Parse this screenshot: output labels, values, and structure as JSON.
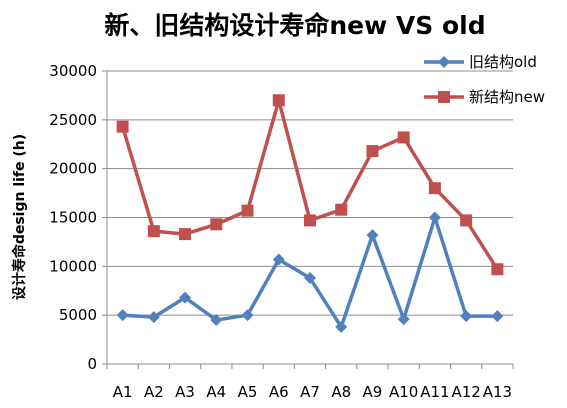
{
  "chart_data": {
    "type": "line",
    "title": "新、旧结构设计寿命new VS old",
    "ylabel": "设计寿命design life (h)",
    "xlabel": "",
    "categories": [
      "A1",
      "A2",
      "A3",
      "A4",
      "A5",
      "A6",
      "A7",
      "A8",
      "A9",
      "A10",
      "A11",
      "A12",
      "A13"
    ],
    "ylim": [
      0,
      30000
    ],
    "yticks": [
      0,
      5000,
      10000,
      15000,
      20000,
      25000,
      30000
    ],
    "grid": true,
    "legend_position": "top-right",
    "series": [
      {
        "name": "旧结构old",
        "color": "#4f81bd",
        "marker": "diamond",
        "values": [
          5000,
          4800,
          6800,
          4500,
          5000,
          10700,
          8800,
          3800,
          13200,
          4600,
          15000,
          4900,
          4900
        ]
      },
      {
        "name": "新结构new",
        "color": "#c0504d",
        "marker": "square",
        "values": [
          24300,
          13600,
          13300,
          14300,
          15700,
          27000,
          14700,
          15800,
          21800,
          23200,
          18000,
          14700,
          9700
        ]
      }
    ]
  }
}
